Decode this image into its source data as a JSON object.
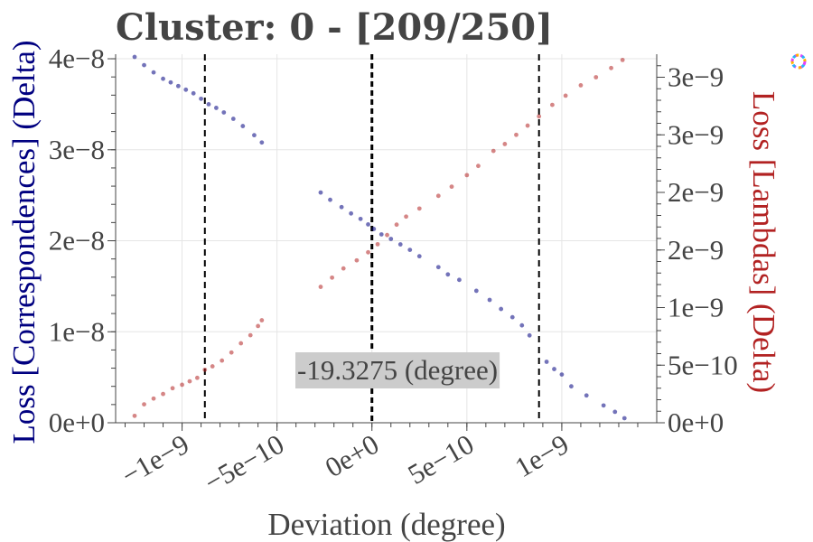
{
  "chart_data": {
    "type": "scatter",
    "title": "Cluster: 0 - [209/250]",
    "xlabel": "Deviation (degree)",
    "ylabel_left": "Loss [Correspondences] (Delta)",
    "ylabel_right": "Loss [Lambdas] (Delta)",
    "xlim": [
      -1.35e-09,
      1.5e-09
    ],
    "ylim_left": [
      0,
      4.05e-08
    ],
    "ylim_right": [
      0,
      3.2e-09
    ],
    "x_ticks": [
      {
        "value": -1e-09,
        "label": "−1e−9"
      },
      {
        "value": -5e-10,
        "label": "−5e−10"
      },
      {
        "value": 0,
        "label": "0e+0"
      },
      {
        "value": 5e-10,
        "label": "5e−10"
      },
      {
        "value": 1e-09,
        "label": "1e−9"
      }
    ],
    "y_left_ticks": [
      {
        "value": 0,
        "label": "0e+0"
      },
      {
        "value": 1e-08,
        "label": "1e−8"
      },
      {
        "value": 2e-08,
        "label": "2e−8"
      },
      {
        "value": 3e-08,
        "label": "3e−8"
      },
      {
        "value": 4e-08,
        "label": "4e−8"
      }
    ],
    "y_right_ticks": [
      {
        "value": 0,
        "label": "0e+0"
      },
      {
        "value": 5e-10,
        "label": "5e−10"
      },
      {
        "value": 1e-09,
        "label": "1e−9"
      },
      {
        "value": 1.5e-09,
        "label": "2e−9"
      },
      {
        "value": 2e-09,
        "label": "2e−9"
      },
      {
        "value": 2.5e-09,
        "label": "3e−9"
      },
      {
        "value": 3e-09,
        "label": "3e−9"
      }
    ],
    "vlines": [
      {
        "x": -8.8e-10,
        "style": "dashed"
      },
      {
        "x": 0,
        "style": "dashed-bold"
      },
      {
        "x": 8.8e-10,
        "style": "dashed"
      }
    ],
    "annotation": "-19.3275 (degree)",
    "grid": true,
    "series": [
      {
        "axis": "left",
        "color": "#000080",
        "points": [
          [
            -1.25e-09,
            4.02e-08
          ],
          [
            -1.2e-09,
            3.93e-08
          ],
          [
            -1.15e-09,
            3.85e-08
          ],
          [
            -1.1e-09,
            3.78e-08
          ],
          [
            -1.06e-09,
            3.74e-08
          ],
          [
            -1.02e-09,
            3.7e-08
          ],
          [
            -9.8e-10,
            3.66e-08
          ],
          [
            -9.4e-10,
            3.62e-08
          ],
          [
            -9e-10,
            3.56e-08
          ],
          [
            -8.6e-10,
            3.5e-08
          ],
          [
            -8.2e-10,
            3.46e-08
          ],
          [
            -7.8e-10,
            3.41e-08
          ],
          [
            -7.3e-10,
            3.34e-08
          ],
          [
            -6.8e-10,
            3.26e-08
          ],
          [
            -6.2e-10,
            3.16e-08
          ],
          [
            -5.8e-10,
            3.08e-08
          ],
          [
            -2.7e-10,
            2.53e-08
          ],
          [
            -2.2e-10,
            2.45e-08
          ],
          [
            -1.6e-10,
            2.37e-08
          ],
          [
            -1.1e-10,
            2.3e-08
          ],
          [
            -6e-11,
            2.24e-08
          ],
          [
            -2e-11,
            2.18e-08
          ],
          [
            1e-11,
            2.13e-08
          ],
          [
            5e-11,
            2.07e-08
          ],
          [
            1e-10,
            2.02e-08
          ],
          [
            1.5e-10,
            1.96e-08
          ],
          [
            2e-10,
            1.9e-08
          ],
          [
            2.5e-10,
            1.83e-08
          ],
          [
            3.5e-10,
            1.71e-08
          ],
          [
            4e-10,
            1.63e-08
          ],
          [
            4.6e-10,
            1.57e-08
          ],
          [
            5.5e-10,
            1.45e-08
          ],
          [
            6.2e-10,
            1.35e-08
          ],
          [
            6.8e-10,
            1.25e-08
          ],
          [
            7.4e-10,
            1.16e-08
          ],
          [
            7.9e-10,
            1.07e-08
          ],
          [
            8.3e-10,
            9.6e-09
          ],
          [
            9.2e-10,
            6.7e-09
          ],
          [
            9.6e-10,
            5.9e-09
          ],
          [
            1e-09,
            5.3e-09
          ],
          [
            1.05e-09,
            4e-09
          ],
          [
            1.13e-09,
            3e-09
          ],
          [
            1.22e-09,
            1.9e-09
          ],
          [
            1.28e-09,
            1.2e-09
          ],
          [
            1.33e-09,
            5e-10
          ]
        ]
      },
      {
        "axis": "right",
        "color": "#b22222",
        "points": [
          [
            -1.25e-09,
            6e-11
          ],
          [
            -1.2e-09,
            1.6e-10
          ],
          [
            -1.15e-09,
            2.1e-10
          ],
          [
            -1.1e-09,
            2.5e-10
          ],
          [
            -1.05e-09,
            3e-10
          ],
          [
            -1e-09,
            3.3e-10
          ],
          [
            -9.6e-10,
            3.6e-10
          ],
          [
            -9.2e-10,
            3.9e-10
          ],
          [
            -8.8e-10,
            4.6e-10
          ],
          [
            -8.4e-10,
            4.9e-10
          ],
          [
            -7.9e-10,
            5.4e-10
          ],
          [
            -7.4e-10,
            6.1e-10
          ],
          [
            -6.9e-10,
            6.9e-10
          ],
          [
            -6.4e-10,
            7.6e-10
          ],
          [
            -6e-10,
            8.4e-10
          ],
          [
            -5.8e-10,
            8.9e-10
          ],
          [
            -2.7e-10,
            1.18e-09
          ],
          [
            -2.1e-10,
            1.26e-09
          ],
          [
            -1.5e-10,
            1.34e-09
          ],
          [
            -8e-11,
            1.41e-09
          ],
          [
            -2e-11,
            1.48e-09
          ],
          [
            3e-11,
            1.55e-09
          ],
          [
            8e-11,
            1.63e-09
          ],
          [
            1.3e-10,
            1.72e-09
          ],
          [
            1.8e-10,
            1.79e-09
          ],
          [
            2.5e-10,
            1.86e-09
          ],
          [
            3.5e-10,
            1.97e-09
          ],
          [
            4.2e-10,
            2.05e-09
          ],
          [
            5e-10,
            2.15e-09
          ],
          [
            5.6e-10,
            2.23e-09
          ],
          [
            6.4e-10,
            2.36e-09
          ],
          [
            7e-10,
            2.42e-09
          ],
          [
            7.6e-10,
            2.5e-09
          ],
          [
            8.2e-10,
            2.58e-09
          ],
          [
            8.8e-10,
            2.66e-09
          ],
          [
            9.5e-10,
            2.76e-09
          ],
          [
            1.02e-09,
            2.84e-09
          ],
          [
            1.1e-09,
            2.93e-09
          ],
          [
            1.18e-09,
            3e-09
          ],
          [
            1.26e-09,
            3.08e-09
          ],
          [
            1.32e-09,
            3.15e-09
          ]
        ]
      }
    ]
  }
}
